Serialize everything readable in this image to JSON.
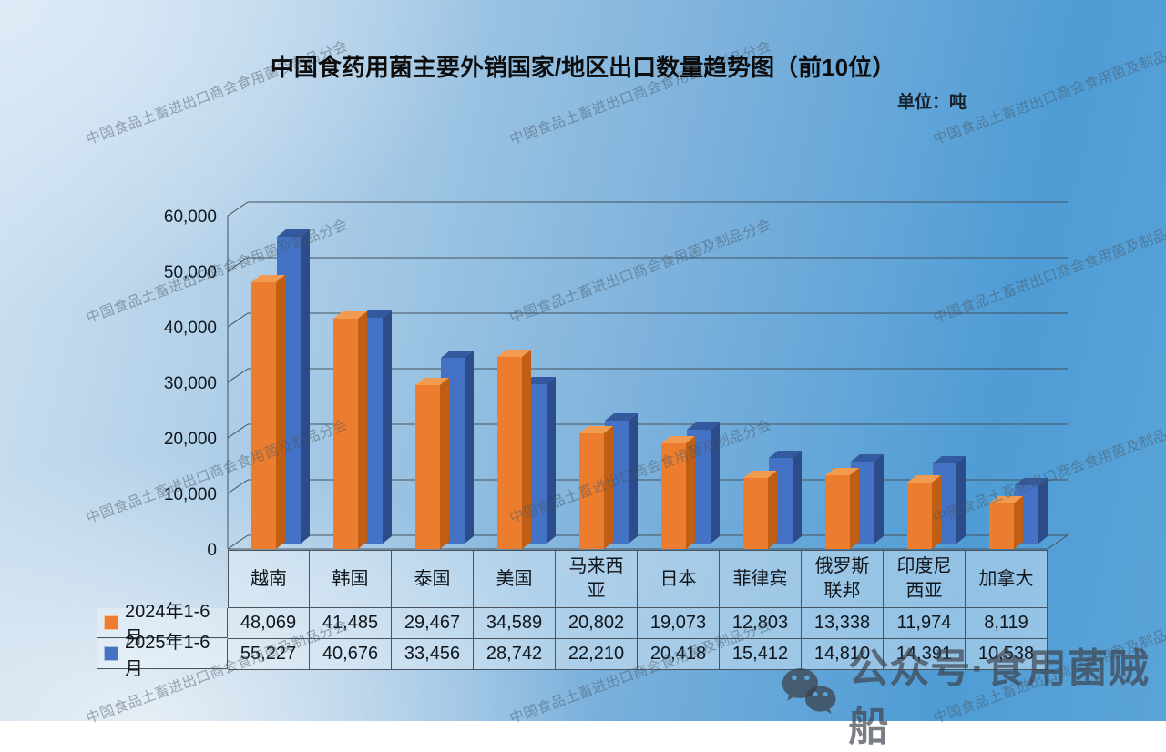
{
  "page": {
    "title": "中国食药用菌主要外销国家/地区出口数量趋势图（前10位）",
    "unit_label": "单位：吨"
  },
  "chart_data": {
    "type": "bar",
    "style": "3d-clustered-column",
    "title": "中国食药用菌主要外销国家/地区出口数量趋势图（前10位）",
    "unit": "吨",
    "categories": [
      "越南",
      "韩国",
      "泰国",
      "美国",
      "马来西亚",
      "日本",
      "菲律宾",
      "俄罗斯联邦",
      "印度尼西亚",
      "加拿大"
    ],
    "series": [
      {
        "name": "2024年1-6月",
        "color": "#EC7D2F",
        "values": [
          48069,
          41485,
          29467,
          34589,
          20802,
          19073,
          12803,
          13338,
          11974,
          8119
        ]
      },
      {
        "name": "2025年1-6月",
        "color": "#4472C4",
        "values": [
          55227,
          40676,
          33456,
          28742,
          22210,
          20418,
          15412,
          14810,
          14391,
          10538
        ]
      }
    ],
    "ylim": [
      0,
      60000
    ],
    "ytick_step": 10000,
    "ytick_labels": [
      "0",
      "10,000",
      "20,000",
      "30,000",
      "40,000",
      "50,000",
      "60,000"
    ],
    "grid": true,
    "legend_position": "table-left"
  },
  "table": {
    "header": [
      "越南",
      "韩国",
      "泰国",
      "美国",
      "马来西\n亚",
      "日本",
      "菲律宾",
      "俄罗斯\n联邦",
      "印度尼\n西亚",
      "加拿大"
    ],
    "rows": [
      {
        "label": "2024年1-6月",
        "swatch": "#EC7D2F",
        "values": [
          "48,069",
          "41,485",
          "29,467",
          "34,589",
          "20,802",
          "19,073",
          "12,803",
          "13,338",
          "11,974",
          "8,119"
        ]
      },
      {
        "label": "2025年1-6月",
        "swatch": "#4472C4",
        "values": [
          "55,227",
          "40,676",
          "33,456",
          "28,742",
          "22,210",
          "20,418",
          "15,412",
          "14,810",
          "14,391",
          "10,538"
        ]
      }
    ]
  },
  "watermark": {
    "text": "中国食品土畜进出口商会食用菌及制品分会"
  },
  "badge": {
    "label": "公众号·食用菌贼船",
    "icon": "wechat-icon"
  },
  "colors": {
    "orange_front": "#EC7D2F",
    "orange_top": "#F29A50",
    "orange_side": "#C05E14",
    "blue_front": "#4472C4",
    "blue_top": "#33599F",
    "blue_side": "#2C4B8A",
    "axis_line": "#44525c"
  }
}
